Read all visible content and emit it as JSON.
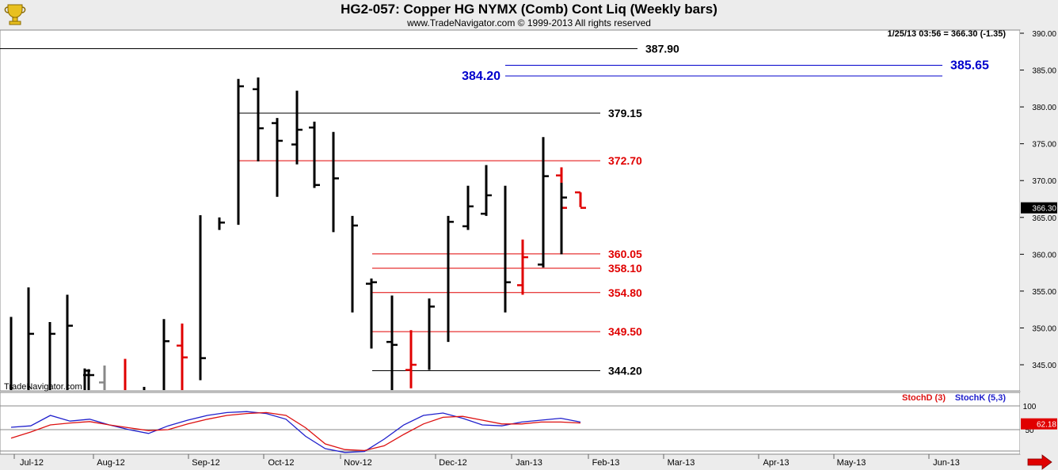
{
  "header": {
    "title": "HG2-057:  Copper HG NYMX (Comb) Cont Liq  (Weekly bars)",
    "subtitle": "www.TradeNavigator.com © 1999-2013 All rights reserved",
    "last_quote": "1/25/13 03:56 = 366.30 (-1.35)",
    "watermark": "TradeNavigator.com",
    "logo_icon": "trophy-cup-icon"
  },
  "colors": {
    "up": "#000000",
    "down": "#e00000",
    "blue": "#0000cc",
    "stochk": "#2020cc",
    "stochd": "#dd1111",
    "panel_bg": "#ffffff",
    "frame_bg": "#ececec"
  },
  "chart_data": [
    {
      "type": "ohlc",
      "name": "price",
      "ylim": [
        341,
        391
      ],
      "y_ticks": [
        "390.00",
        "385.00",
        "380.00",
        "375.00",
        "370.00",
        "365.00",
        "360.00",
        "355.00",
        "350.00",
        "345.00"
      ],
      "last_value_label": "366.30",
      "x_labels": [
        "Jul-12",
        "Aug-12",
        "Sep-12",
        "Oct-12",
        "Nov-12",
        "Dec-12",
        "Jan-13",
        "Feb-13",
        "Mar-13",
        "Apr-13",
        "May-13",
        "Jun-13"
      ],
      "bars": [
        {
          "x": "Jun-25",
          "o": null,
          "h": 351.5,
          "l": 341,
          "c": null,
          "color": "black"
        },
        {
          "x": "Jul-02",
          "o": null,
          "h": 355.5,
          "l": 341,
          "c": 349.2,
          "color": "black"
        },
        {
          "x": "Jul-09",
          "o": null,
          "h": 350.8,
          "l": 341,
          "c": 349.2,
          "color": "black"
        },
        {
          "x": "Jul-16",
          "o": null,
          "h": 354.5,
          "l": 341,
          "c": 350.3,
          "color": "black"
        },
        {
          "x": "Jul-23",
          "o": null,
          "h": 344.5,
          "l": 341,
          "c": 344.2,
          "color": "black"
        },
        {
          "x": "Jul-30",
          "o": 343.6,
          "h": 344.4,
          "l": 341,
          "c": 343.6,
          "color": "black"
        },
        {
          "x": "Aug-06",
          "o": 342.6,
          "h": 344.9,
          "l": 341,
          "c": null,
          "color": "gray"
        },
        {
          "x": "Aug-13",
          "o": null,
          "h": 345.8,
          "l": 341,
          "c": null,
          "color": "red"
        },
        {
          "x": "Aug-27",
          "o": null,
          "h": 342,
          "l": 341,
          "c": null,
          "color": "black"
        },
        {
          "x": "Sep-03",
          "o": null,
          "h": 351.2,
          "l": 341,
          "c": 348.2,
          "color": "black"
        },
        {
          "x": "Sep-10",
          "o": 347.6,
          "h": 350.6,
          "l": 341,
          "c": 346.0,
          "color": "red"
        },
        {
          "x": "Sep-17",
          "o": null,
          "h": 365.3,
          "l": 342.9,
          "c": 345.9,
          "color": "black"
        },
        {
          "x": "Sep-24",
          "o": null,
          "h": 365.0,
          "l": 363.3,
          "c": 364.3,
          "color": "black"
        },
        {
          "x": "Oct-01",
          "o": null,
          "h": 383.8,
          "l": 364.0,
          "c": 382.8,
          "color": "black"
        },
        {
          "x": "Oct-08",
          "o": 382.4,
          "h": 384.0,
          "l": 372.6,
          "c": 377.1,
          "color": "black"
        },
        {
          "x": "Oct-15",
          "o": 377.8,
          "h": 378.5,
          "l": 367.8,
          "c": 375.4,
          "color": "black"
        },
        {
          "x": "Oct-22",
          "o": 374.9,
          "h": 382.2,
          "l": 372.2,
          "c": 376.9,
          "color": "black"
        },
        {
          "x": "Oct-29",
          "o": 377.2,
          "h": 378.0,
          "l": 369.0,
          "c": 369.4,
          "color": "black"
        },
        {
          "x": "Nov-05",
          "o": null,
          "h": 376.6,
          "l": 363.0,
          "c": 370.3,
          "color": "black"
        },
        {
          "x": "Nov-12",
          "o": null,
          "h": 365.2,
          "l": 352.1,
          "c": 363.9,
          "color": "black"
        },
        {
          "x": "Nov-19",
          "o": 356.0,
          "h": 356.7,
          "l": 347.2,
          "c": 356.2,
          "color": "black"
        },
        {
          "x": "Nov-26",
          "o": 348.1,
          "h": 354.4,
          "l": 341,
          "c": 347.7,
          "color": "black"
        },
        {
          "x": "Dec-03",
          "o": 344.3,
          "h": 349.7,
          "l": 341.8,
          "c": 345.0,
          "color": "red"
        },
        {
          "x": "Dec-10",
          "o": null,
          "h": 354.0,
          "l": 344.3,
          "c": 352.9,
          "color": "black"
        },
        {
          "x": "Dec-17",
          "o": null,
          "h": 365.2,
          "l": 348.1,
          "c": 364.4,
          "color": "black"
        },
        {
          "x": "Dec-24",
          "o": 363.8,
          "h": 369.3,
          "l": 363.3,
          "c": 366.5,
          "color": "black"
        },
        {
          "x": "Dec-31",
          "o": 365.5,
          "h": 372.1,
          "l": 365.2,
          "c": 368.0,
          "color": "black"
        },
        {
          "x": "Jan-07",
          "o": null,
          "h": 369.3,
          "l": 352.1,
          "c": 356.2,
          "color": "black"
        },
        {
          "x": "Jan-14",
          "o": 355.8,
          "h": 362.0,
          "l": 354.5,
          "c": 359.6,
          "color": "red"
        },
        {
          "x": "Jan-21",
          "o": 358.6,
          "h": 375.9,
          "l": 358.2,
          "c": 370.6,
          "color": "black"
        },
        {
          "x": "Jan-28",
          "o": 370.7,
          "h": 371.8,
          "l": 365.2,
          "c": 366.3,
          "color": "red"
        },
        {
          "x": "Feb-04",
          "o": null,
          "h": 369.7,
          "l": 360.0,
          "c": 367.7,
          "color": "black"
        },
        {
          "x": "Feb-11",
          "o": 368.4,
          "h": 368.4,
          "l": 366.4,
          "c": 366.3,
          "color": "red"
        }
      ],
      "levels": [
        {
          "label": "387.90",
          "value": 387.9,
          "color": "black"
        },
        {
          "label": "385.65",
          "value": 385.65,
          "color": "blue"
        },
        {
          "label": "384.20",
          "value": 384.2,
          "color": "blue"
        },
        {
          "label": "379.15",
          "value": 379.15,
          "color": "black"
        },
        {
          "label": "372.70",
          "value": 372.7,
          "color": "red"
        },
        {
          "label": "360.05",
          "value": 360.05,
          "color": "red"
        },
        {
          "label": "358.10",
          "value": 358.1,
          "color": "red"
        },
        {
          "label": "354.80",
          "value": 354.8,
          "color": "red"
        },
        {
          "label": "349.50",
          "value": 349.5,
          "color": "red"
        },
        {
          "label": "344.20",
          "value": 344.2,
          "color": "black"
        }
      ]
    },
    {
      "type": "line",
      "name": "stochastic",
      "ylim": [
        0,
        100
      ],
      "y_ticks": [
        "100",
        "50"
      ],
      "last_value_label": "62.18",
      "legend": [
        "StochD (3)",
        "StochK (5,3)"
      ],
      "series": [
        {
          "name": "StochK (5,3)",
          "color": "blue",
          "values": [
            55,
            58,
            80,
            68,
            72,
            60,
            50,
            42,
            58,
            70,
            80,
            86,
            88,
            84,
            72,
            36,
            10,
            2,
            4,
            30,
            60,
            80,
            85,
            74,
            60,
            58,
            66,
            70,
            74,
            66
          ]
        },
        {
          "name": "StochD (3)",
          "color": "red",
          "values": [
            32,
            45,
            60,
            64,
            67,
            60,
            54,
            48,
            50,
            62,
            72,
            80,
            84,
            86,
            80,
            54,
            20,
            8,
            6,
            16,
            40,
            62,
            76,
            78,
            70,
            62,
            62,
            66,
            66,
            64
          ]
        }
      ]
    }
  ]
}
